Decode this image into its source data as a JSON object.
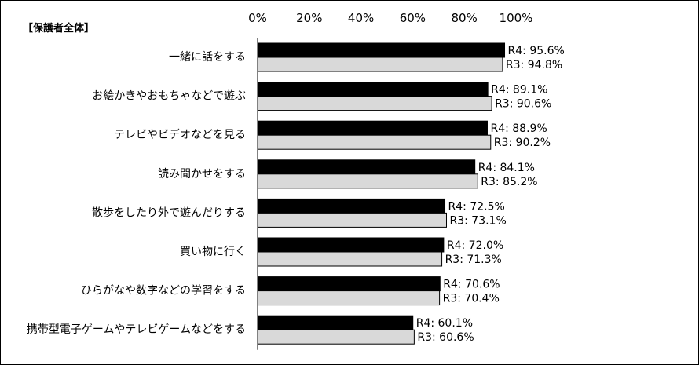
{
  "chart_data": {
    "type": "bar",
    "orientation": "horizontal",
    "subtitle": "【保護者全体】",
    "categories": [
      "一緒に話をする",
      "お絵かきやおもちゃなどで遊ぶ",
      "テレビやビデオなどを見る",
      "読み聞かせをする",
      "散歩をしたり外で遊んだりする",
      "買い物に行く",
      "ひらがなや数字などの学習をする",
      "携帯型電子ゲームやテレビゲームなどをする"
    ],
    "series": [
      {
        "name": "R4",
        "color": "#000000",
        "values": [
          95.6,
          89.1,
          88.9,
          84.1,
          72.5,
          72.0,
          70.6,
          60.1
        ],
        "labels": [
          "R4: 95.6%",
          "R4: 89.1%",
          "R4: 88.9%",
          "R4: 84.1%",
          "R4: 72.5%",
          "R4: 72.0%",
          "R4: 70.6%",
          "R4: 60.1%"
        ]
      },
      {
        "name": "R3",
        "color": "#d9d9d9",
        "values": [
          94.8,
          90.6,
          90.2,
          85.2,
          73.1,
          71.3,
          70.4,
          60.6
        ],
        "labels": [
          "R3: 94.8%",
          "R3: 90.6%",
          "R3: 90.2%",
          "R3: 85.2%",
          "R3: 73.1%",
          "R3: 71.3%",
          "R3: 70.4%",
          "R3: 60.6%"
        ]
      }
    ],
    "xlim": [
      0,
      100
    ],
    "xticks": [
      "0%",
      "20%",
      "40%",
      "60%",
      "80%",
      "100%"
    ],
    "tick_values": [
      0,
      20,
      40,
      60,
      80,
      100
    ],
    "axis_position": "top",
    "grid": false,
    "legend": "none"
  }
}
